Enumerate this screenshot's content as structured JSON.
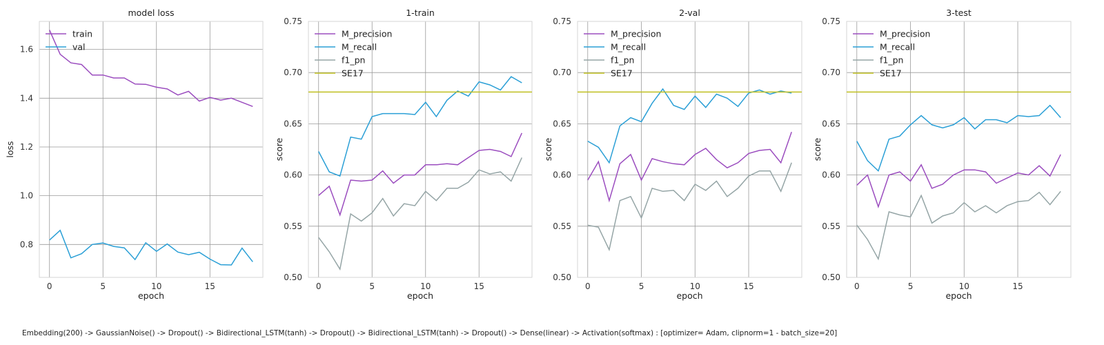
{
  "caption": "Embedding(200) -> GaussianNoise() -> Dropout() -> Bidirectional_LSTM(tanh) -> Dropout() -> Bidirectional_LSTM(tanh) -> Dropout() -> Dense(linear) -> Activation(softmax) : [optimizer= Adam, clipnorm=1 - batch_size=20]",
  "colors": {
    "purple": "#9b4dbf",
    "blue": "#2a9fd6",
    "gray": "#95a5a6",
    "olive": "#bfbf1f"
  },
  "chart_data": [
    {
      "type": "line",
      "title": "model loss",
      "xlabel": "epoch",
      "ylabel": "loss",
      "xlim": [
        -0.95,
        19.95
      ],
      "ylim": [
        0.665,
        1.715
      ],
      "xticks": [
        0,
        5,
        10,
        15
      ],
      "yticks": [
        0.8,
        1.0,
        1.2,
        1.4,
        1.6
      ],
      "ytick_labels": [
        "0.8",
        "1.0",
        "1.2",
        "1.4",
        "1.6"
      ],
      "grid": true,
      "legend_position": "top-left",
      "x": [
        0,
        1,
        2,
        3,
        4,
        5,
        6,
        7,
        8,
        9,
        10,
        11,
        12,
        13,
        14,
        15,
        16,
        17,
        18,
        19
      ],
      "series": [
        {
          "name": "train",
          "color": "#9b4dbf",
          "values": [
            1.68,
            1.58,
            1.545,
            1.538,
            1.495,
            1.495,
            1.483,
            1.483,
            1.458,
            1.457,
            1.445,
            1.438,
            1.413,
            1.428,
            1.388,
            1.403,
            1.392,
            1.4,
            1.383,
            1.366
          ]
        },
        {
          "name": "val",
          "color": "#2a9fd6",
          "values": [
            0.818,
            0.858,
            0.745,
            0.762,
            0.8,
            0.806,
            0.792,
            0.786,
            0.738,
            0.807,
            0.772,
            0.802,
            0.769,
            0.758,
            0.768,
            0.74,
            0.717,
            0.716,
            0.785,
            0.729
          ]
        }
      ]
    },
    {
      "type": "line",
      "title": "1-train",
      "xlabel": "epoch",
      "ylabel": "score",
      "xlim": [
        -0.95,
        19.95
      ],
      "ylim": [
        0.5,
        0.75
      ],
      "xticks": [
        0,
        5,
        10,
        15
      ],
      "yticks": [
        0.5,
        0.55,
        0.6,
        0.65,
        0.7,
        0.75
      ],
      "ytick_labels": [
        "0.50",
        "0.55",
        "0.60",
        "0.65",
        "0.70",
        "0.75"
      ],
      "grid": true,
      "legend_position": "top-left",
      "x": [
        0,
        1,
        2,
        3,
        4,
        5,
        6,
        7,
        8,
        9,
        10,
        11,
        12,
        13,
        14,
        15,
        16,
        17,
        18,
        19
      ],
      "series": [
        {
          "name": "M_precision",
          "color": "#9b4dbf",
          "values": [
            0.58,
            0.589,
            0.561,
            0.595,
            0.594,
            0.595,
            0.604,
            0.592,
            0.6,
            0.6,
            0.61,
            0.61,
            0.611,
            0.61,
            0.617,
            0.624,
            0.625,
            0.623,
            0.618,
            0.641
          ]
        },
        {
          "name": "M_recall",
          "color": "#2a9fd6",
          "values": [
            0.623,
            0.603,
            0.599,
            0.637,
            0.635,
            0.657,
            0.66,
            0.66,
            0.66,
            0.659,
            0.671,
            0.657,
            0.673,
            0.682,
            0.677,
            0.691,
            0.688,
            0.683,
            0.696,
            0.69
          ]
        },
        {
          "name": "f1_pn",
          "color": "#95a5a6",
          "values": [
            0.539,
            0.525,
            0.508,
            0.562,
            0.555,
            0.563,
            0.577,
            0.56,
            0.572,
            0.57,
            0.584,
            0.575,
            0.587,
            0.587,
            0.593,
            0.605,
            0.601,
            0.603,
            0.594,
            0.617
          ]
        },
        {
          "name": "SE17",
          "color": "#bfbf1f",
          "constant": 0.681
        }
      ]
    },
    {
      "type": "line",
      "title": "2-val",
      "xlabel": "epoch",
      "ylabel": "score",
      "xlim": [
        -0.95,
        19.95
      ],
      "ylim": [
        0.5,
        0.75
      ],
      "xticks": [
        0,
        5,
        10,
        15
      ],
      "yticks": [
        0.5,
        0.55,
        0.6,
        0.65,
        0.7,
        0.75
      ],
      "ytick_labels": [
        "0.50",
        "0.55",
        "0.60",
        "0.65",
        "0.70",
        "0.75"
      ],
      "grid": true,
      "legend_position": "top-left",
      "x": [
        0,
        1,
        2,
        3,
        4,
        5,
        6,
        7,
        8,
        9,
        10,
        11,
        12,
        13,
        14,
        15,
        16,
        17,
        18,
        19
      ],
      "series": [
        {
          "name": "M_precision",
          "color": "#9b4dbf",
          "values": [
            0.595,
            0.613,
            0.575,
            0.611,
            0.62,
            0.595,
            0.616,
            0.613,
            0.611,
            0.61,
            0.62,
            0.626,
            0.615,
            0.607,
            0.612,
            0.621,
            0.624,
            0.625,
            0.612,
            0.642
          ]
        },
        {
          "name": "M_recall",
          "color": "#2a9fd6",
          "values": [
            0.633,
            0.627,
            0.612,
            0.648,
            0.656,
            0.652,
            0.67,
            0.684,
            0.668,
            0.664,
            0.677,
            0.666,
            0.679,
            0.675,
            0.667,
            0.68,
            0.683,
            0.679,
            0.682,
            0.68
          ]
        },
        {
          "name": "f1_pn",
          "color": "#95a5a6",
          "values": [
            0.551,
            0.549,
            0.527,
            0.575,
            0.579,
            0.558,
            0.587,
            0.584,
            0.585,
            0.575,
            0.591,
            0.585,
            0.594,
            0.579,
            0.587,
            0.599,
            0.604,
            0.604,
            0.584,
            0.612
          ]
        },
        {
          "name": "SE17",
          "color": "#bfbf1f",
          "constant": 0.681
        }
      ]
    },
    {
      "type": "line",
      "title": "3-test",
      "xlabel": "epoch",
      "ylabel": "score",
      "xlim": [
        -0.95,
        19.95
      ],
      "ylim": [
        0.5,
        0.75
      ],
      "xticks": [
        0,
        5,
        10,
        15
      ],
      "yticks": [
        0.5,
        0.55,
        0.6,
        0.65,
        0.7,
        0.75
      ],
      "ytick_labels": [
        "0.50",
        "0.55",
        "0.60",
        "0.65",
        "0.70",
        "0.75"
      ],
      "grid": true,
      "legend_position": "top-left",
      "x": [
        0,
        1,
        2,
        3,
        4,
        5,
        6,
        7,
        8,
        9,
        10,
        11,
        12,
        13,
        14,
        15,
        16,
        17,
        18,
        19
      ],
      "series": [
        {
          "name": "M_precision",
          "color": "#9b4dbf",
          "values": [
            0.59,
            0.6,
            0.569,
            0.6,
            0.603,
            0.594,
            0.61,
            0.587,
            0.591,
            0.6,
            0.605,
            0.605,
            0.603,
            0.592,
            0.597,
            0.602,
            0.6,
            0.609,
            0.599,
            0.62
          ]
        },
        {
          "name": "M_recall",
          "color": "#2a9fd6",
          "values": [
            0.633,
            0.614,
            0.604,
            0.635,
            0.638,
            0.649,
            0.658,
            0.649,
            0.646,
            0.649,
            0.656,
            0.645,
            0.654,
            0.654,
            0.651,
            0.658,
            0.657,
            0.658,
            0.668,
            0.656
          ]
        },
        {
          "name": "f1_pn",
          "color": "#95a5a6",
          "values": [
            0.551,
            0.537,
            0.518,
            0.564,
            0.561,
            0.559,
            0.58,
            0.553,
            0.56,
            0.563,
            0.573,
            0.564,
            0.57,
            0.563,
            0.57,
            0.574,
            0.575,
            0.583,
            0.571,
            0.584
          ]
        },
        {
          "name": "SE17",
          "color": "#bfbf1f",
          "constant": 0.681
        }
      ]
    }
  ]
}
